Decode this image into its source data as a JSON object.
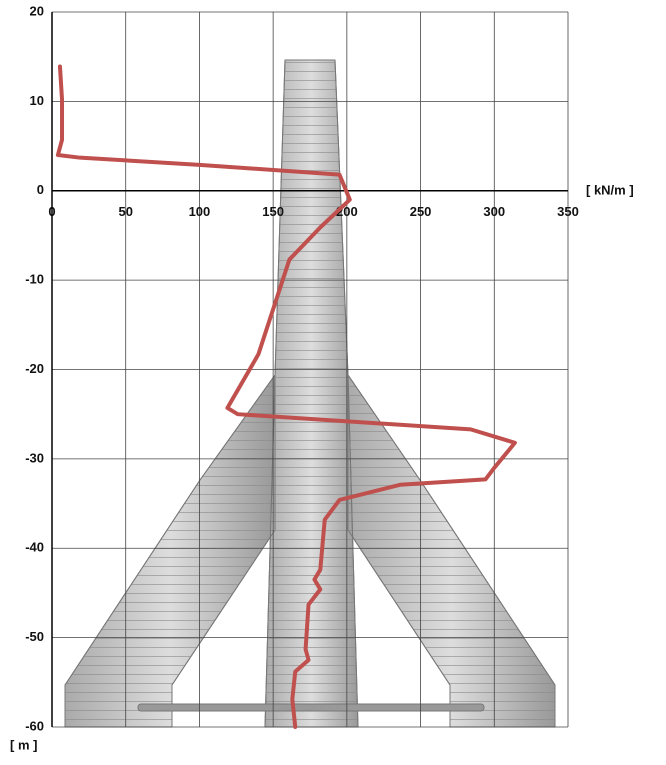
{
  "chart_data": {
    "type": "line",
    "x_label": "[ kN/m ]",
    "y_label": "[ m ]",
    "xlim": [
      0,
      350
    ],
    "xticks": [
      0,
      50,
      100,
      150,
      200,
      250,
      300,
      350
    ],
    "ylim": [
      -60,
      20
    ],
    "yticks": [
      -60,
      -50,
      -40,
      -30,
      -20,
      -10,
      0,
      10,
      20
    ],
    "grid": true,
    "series": [
      {
        "color": "#c0504d",
        "x": [
          5.4,
          6.8,
          6.8,
          4,
          19,
          100,
          195,
          202,
          182,
          161,
          140,
          119,
          126,
          284,
          314,
          300,
          294,
          236,
          195,
          185,
          182,
          178,
          182,
          174,
          172,
          174,
          165,
          163,
          165
        ],
        "values": [
          13.9,
          10.2,
          5.7,
          4,
          3.7,
          2.9,
          1.8,
          -1,
          -4.1,
          -7.7,
          -18.3,
          -24.3,
          -25,
          -26.7,
          -28.2,
          -31,
          -32.3,
          -32.9,
          -34.6,
          -36.8,
          -42.4,
          -43.5,
          -44.6,
          -46.3,
          -51.3,
          -52.5,
          -53.8,
          -56.9,
          -60
        ]
      }
    ]
  }
}
